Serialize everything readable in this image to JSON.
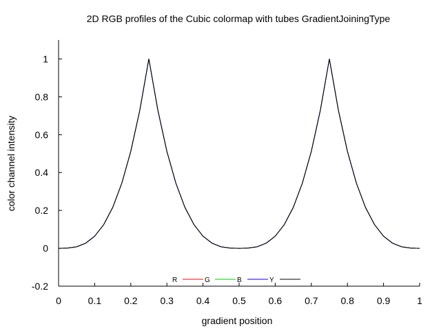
{
  "chart_data": {
    "type": "line",
    "title": "2D RGB profiles of the Cubic colormap with tubes GradientJoiningType",
    "xlabel": "gradient position",
    "ylabel": "color channel intensity",
    "xlim": [
      0,
      1
    ],
    "ylim": [
      -0.2,
      1.1
    ],
    "xticks": [
      "0",
      "0.1",
      "0.2",
      "0.3",
      "0.4",
      "0.5",
      "0.6",
      "0.7",
      "0.8",
      "0.9",
      "1"
    ],
    "yticks": [
      "-0.2",
      "0",
      "0.2",
      "0.4",
      "0.6",
      "0.8",
      "1"
    ],
    "grid": false,
    "legend_position": "bottom-center",
    "x": [
      0,
      0.025,
      0.05,
      0.075,
      0.1,
      0.125,
      0.15,
      0.175,
      0.2,
      0.225,
      0.25,
      0.275,
      0.3,
      0.325,
      0.35,
      0.375,
      0.4,
      0.425,
      0.45,
      0.475,
      0.5,
      0.525,
      0.55,
      0.575,
      0.6,
      0.625,
      0.65,
      0.675,
      0.7,
      0.725,
      0.75,
      0.775,
      0.8,
      0.825,
      0.85,
      0.875,
      0.9,
      0.925,
      0.95,
      0.975,
      1
    ],
    "series": [
      {
        "name": "R",
        "color": "#ff0000",
        "values": [
          0,
          0.001,
          0.008,
          0.027,
          0.064,
          0.125,
          0.216,
          0.343,
          0.512,
          0.729,
          1,
          0.729,
          0.512,
          0.343,
          0.216,
          0.125,
          0.064,
          0.027,
          0.008,
          0.001,
          0,
          0.001,
          0.008,
          0.027,
          0.064,
          0.125,
          0.216,
          0.343,
          0.512,
          0.729,
          1,
          0.729,
          0.512,
          0.343,
          0.216,
          0.125,
          0.064,
          0.027,
          0.008,
          0.001,
          0
        ]
      },
      {
        "name": "G",
        "color": "#00cc00",
        "values": [
          0,
          0.001,
          0.008,
          0.027,
          0.064,
          0.125,
          0.216,
          0.343,
          0.512,
          0.729,
          1,
          0.729,
          0.512,
          0.343,
          0.216,
          0.125,
          0.064,
          0.027,
          0.008,
          0.001,
          0,
          0.001,
          0.008,
          0.027,
          0.064,
          0.125,
          0.216,
          0.343,
          0.512,
          0.729,
          1,
          0.729,
          0.512,
          0.343,
          0.216,
          0.125,
          0.064,
          0.027,
          0.008,
          0.001,
          0
        ]
      },
      {
        "name": "B",
        "color": "#0000ff",
        "values": [
          0,
          0.001,
          0.008,
          0.027,
          0.064,
          0.125,
          0.216,
          0.343,
          0.512,
          0.729,
          1,
          0.729,
          0.512,
          0.343,
          0.216,
          0.125,
          0.064,
          0.027,
          0.008,
          0.001,
          0,
          0.001,
          0.008,
          0.027,
          0.064,
          0.125,
          0.216,
          0.343,
          0.512,
          0.729,
          1,
          0.729,
          0.512,
          0.343,
          0.216,
          0.125,
          0.064,
          0.027,
          0.008,
          0.001,
          0
        ]
      },
      {
        "name": "Y",
        "color": "#000000",
        "values": [
          0,
          0.001,
          0.008,
          0.027,
          0.064,
          0.125,
          0.216,
          0.343,
          0.512,
          0.729,
          1,
          0.729,
          0.512,
          0.343,
          0.216,
          0.125,
          0.064,
          0.027,
          0.008,
          0.001,
          0,
          0.001,
          0.008,
          0.027,
          0.064,
          0.125,
          0.216,
          0.343,
          0.512,
          0.729,
          1,
          0.729,
          0.512,
          0.343,
          0.216,
          0.125,
          0.064,
          0.027,
          0.008,
          0.001,
          0
        ]
      }
    ]
  }
}
